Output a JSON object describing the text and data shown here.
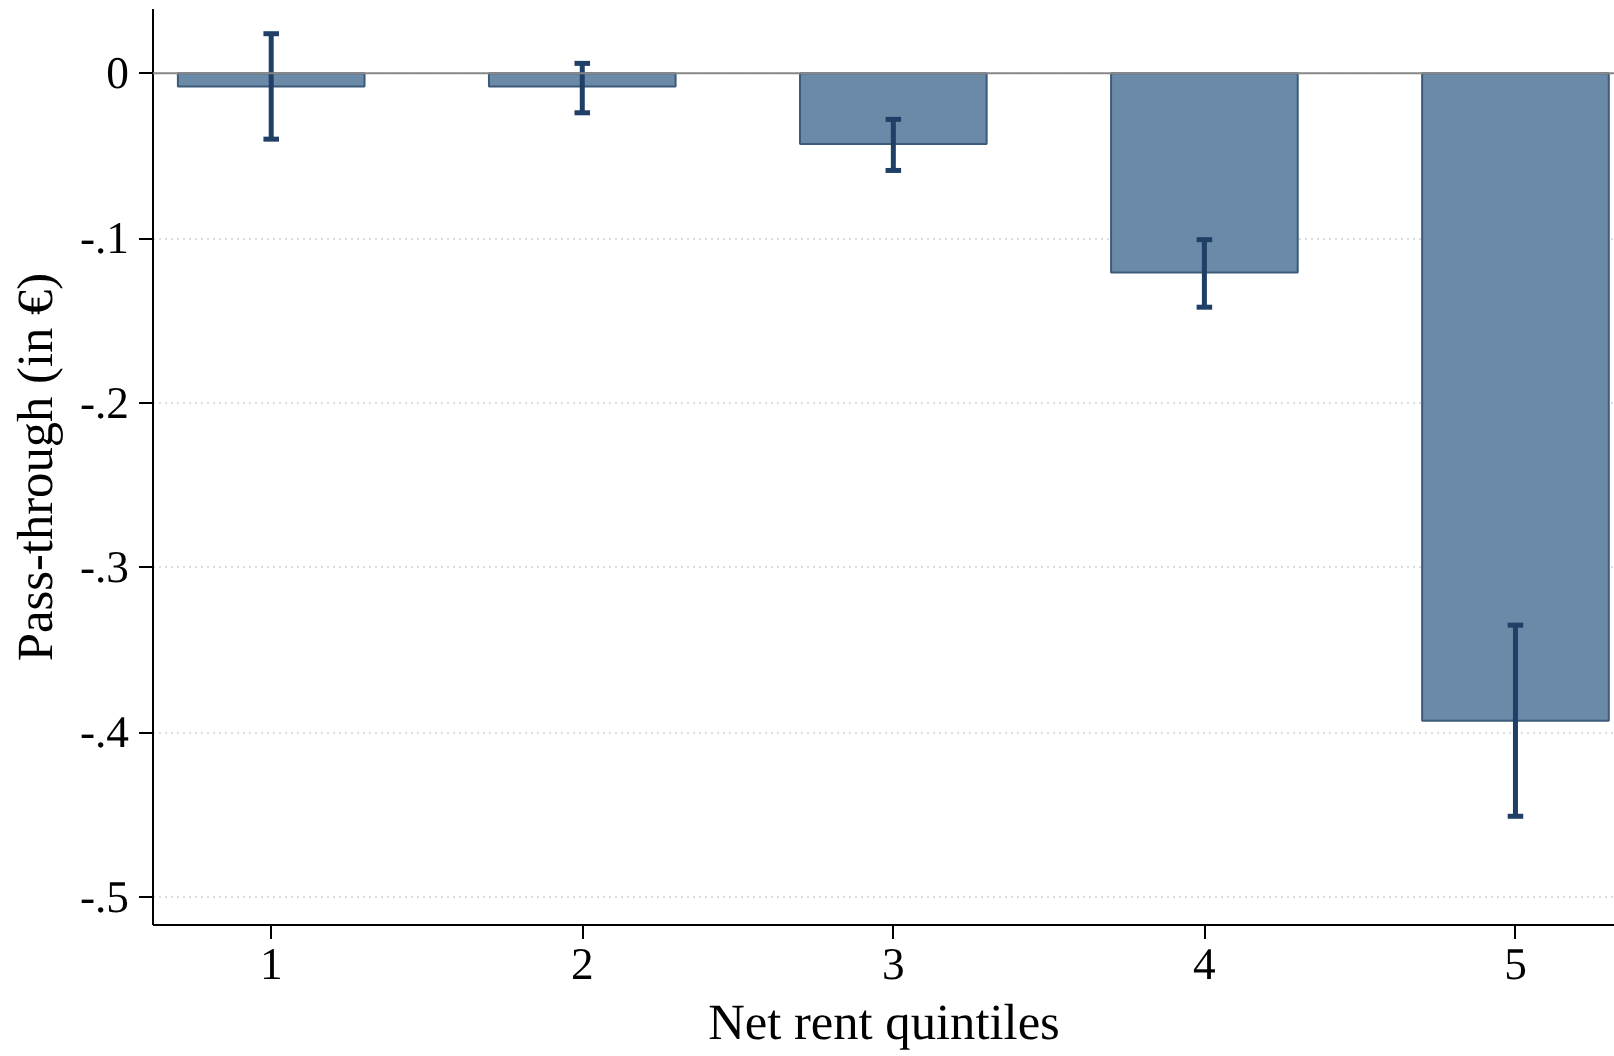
{
  "chart_data": {
    "type": "bar",
    "xlabel": "Net rent quintiles",
    "ylabel": "Pass-through (in €)",
    "categories": [
      "1",
      "2",
      "3",
      "4",
      "5"
    ],
    "series": [
      {
        "color": "#6a8aa8",
        "values": [
          -0.008,
          -0.008,
          -0.043,
          -0.121,
          -0.393
        ],
        "errors": [
          [
            -0.04,
            0.024
          ],
          [
            -0.024,
            0.006
          ],
          [
            -0.059,
            -0.028
          ],
          [
            -0.142,
            -0.101
          ],
          [
            -0.451,
            -0.335
          ]
        ]
      }
    ],
    "ylim": [
      -0.517,
      0.039
    ],
    "yticks": [
      0,
      {
        "value": -0.1,
        "label": "-.1"
      },
      {
        "value": -0.2,
        "label": "-.2"
      },
      {
        "value": -0.3,
        "label": "-.3"
      },
      {
        "value": -0.4,
        "label": "-.4"
      },
      {
        "value": -0.5,
        "label": "-.5"
      }
    ],
    "grid": "y",
    "ref_lines": [
      {
        "axis": "y",
        "value": 0,
        "color": "#888888"
      }
    ]
  }
}
